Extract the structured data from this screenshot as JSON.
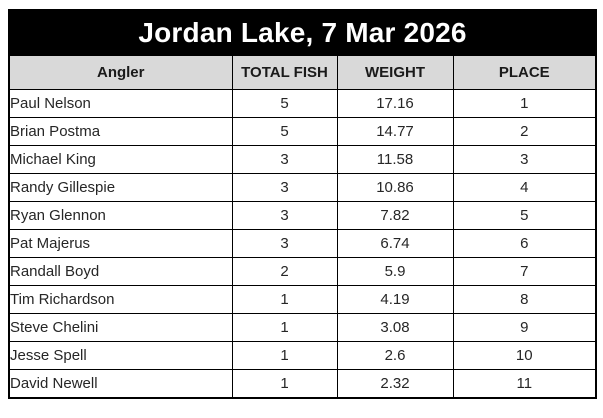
{
  "title": "Jordan Lake, 7 Mar 2026",
  "colors": {
    "title_bg": "#000000",
    "title_text": "#ffffff",
    "header_bg": "#d9d9d9",
    "border": "#000000",
    "cell_text": "#262626",
    "row_bg": "#ffffff"
  },
  "table": {
    "headers": [
      "Angler",
      "TOTAL FISH",
      "WEIGHT",
      "PLACE"
    ],
    "rows": [
      {
        "angler": "Paul Nelson",
        "total_fish": "5",
        "weight": "17.16",
        "place": "1"
      },
      {
        "angler": "Brian Postma",
        "total_fish": "5",
        "weight": "14.77",
        "place": "2"
      },
      {
        "angler": "Michael King",
        "total_fish": "3",
        "weight": "11.58",
        "place": "3"
      },
      {
        "angler": "Randy Gillespie",
        "total_fish": "3",
        "weight": "10.86",
        "place": "4"
      },
      {
        "angler": "Ryan Glennon",
        "total_fish": "3",
        "weight": "7.82",
        "place": "5"
      },
      {
        "angler": "Pat Majerus",
        "total_fish": "3",
        "weight": "6.74",
        "place": "6"
      },
      {
        "angler": "Randall Boyd",
        "total_fish": "2",
        "weight": "5.9",
        "place": "7"
      },
      {
        "angler": "Tim Richardson",
        "total_fish": "1",
        "weight": "4.19",
        "place": "8"
      },
      {
        "angler": "Steve Chelini",
        "total_fish": "1",
        "weight": "3.08",
        "place": "9"
      },
      {
        "angler": "Jesse Spell",
        "total_fish": "1",
        "weight": "2.6",
        "place": "10"
      },
      {
        "angler": "David Newell",
        "total_fish": "1",
        "weight": "2.32",
        "place": "11"
      }
    ]
  }
}
